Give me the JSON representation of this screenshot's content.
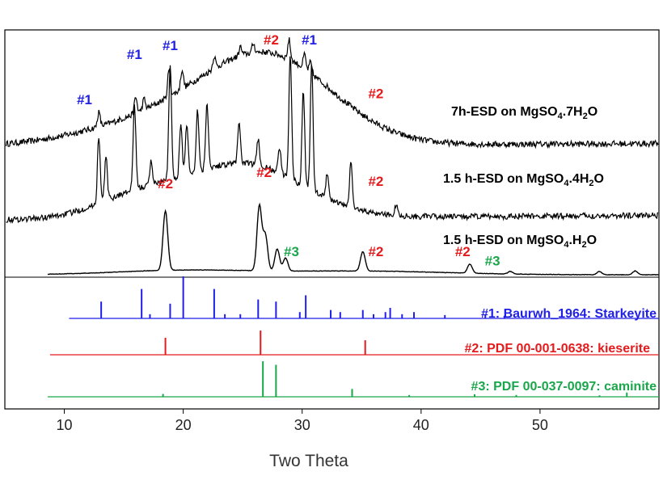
{
  "chart_data": {
    "type": "line",
    "xlabel": "Two Theta",
    "ylabel": "",
    "xlim": [
      5,
      60
    ],
    "xticks": [
      10,
      20,
      30,
      40,
      50
    ],
    "grid": false,
    "legend_placement": "none",
    "colors": {
      "hash1": "#1f1fe6",
      "hash2": "#e41a1c",
      "hash3": "#1aa64a",
      "measured": "#000000",
      "frame": "#000000"
    },
    "series": [
      {
        "label_main": "7h-ESD on MgSO",
        "sub1": "4",
        "mid": ".7H",
        "sub2": "2",
        "tail": "O",
        "baseline": 0.0,
        "hump": {
          "center": 27.5,
          "width": 7.5,
          "height": 0.62
        },
        "hump2": {
          "center": 20,
          "width": 10,
          "height": 0.25
        },
        "noise": 0.05,
        "peaks": [
          {
            "x": 12.9,
            "h": 0.16
          },
          {
            "x": 16.0,
            "h": 0.18
          },
          {
            "x": 16.7,
            "h": 0.12
          },
          {
            "x": 18.8,
            "h": 0.3
          },
          {
            "x": 19.9,
            "h": 0.22
          },
          {
            "x": 22.6,
            "h": 0.14
          },
          {
            "x": 24.8,
            "h": 0.1
          },
          {
            "x": 25.9,
            "h": 0.1
          },
          {
            "x": 28.9,
            "h": 0.22
          },
          {
            "x": 30.2,
            "h": 0.16
          },
          {
            "x": 30.7,
            "h": 0.12
          }
        ]
      },
      {
        "label_main": "1.5 h-ESD on MgSO",
        "sub1": "4",
        "mid": ".4H",
        "sub2": "2",
        "tail": "O",
        "baseline": 0.0,
        "hump": {
          "center": 25,
          "width": 7,
          "height": 0.42
        },
        "hump2": {
          "center": 16,
          "width": 5,
          "height": 0.15
        },
        "noise": 0.045,
        "peaks": [
          {
            "x": 12.9,
            "h": 0.52
          },
          {
            "x": 13.5,
            "h": 0.34
          },
          {
            "x": 15.9,
            "h": 0.66
          },
          {
            "x": 17.3,
            "h": 0.18
          },
          {
            "x": 18.9,
            "h": 0.9
          },
          {
            "x": 19.8,
            "h": 0.4
          },
          {
            "x": 20.3,
            "h": 0.4
          },
          {
            "x": 21.2,
            "h": 0.48
          },
          {
            "x": 22.0,
            "h": 0.52
          },
          {
            "x": 24.7,
            "h": 0.32
          },
          {
            "x": 26.3,
            "h": 0.2
          },
          {
            "x": 28.1,
            "h": 0.2
          },
          {
            "x": 29.0,
            "h": 0.98
          },
          {
            "x": 30.1,
            "h": 0.74
          },
          {
            "x": 30.8,
            "h": 1.0
          },
          {
            "x": 32.1,
            "h": 0.2
          },
          {
            "x": 34.1,
            "h": 0.36
          },
          {
            "x": 37.9,
            "h": 0.08
          }
        ]
      },
      {
        "label_main": "1.5 h-ESD on MgSO",
        "sub1": "4",
        "mid": ".H",
        "sub2": "2",
        "tail": "O",
        "baseline": 0.0,
        "hump": {
          "center": 20,
          "width": 8,
          "height": 0.06
        },
        "hump2": {
          "center": 35,
          "width": 10,
          "height": 0.05
        },
        "noise": 0.006,
        "peaks": [
          {
            "x": 18.5,
            "h": 0.92
          },
          {
            "x": 26.4,
            "h": 1.0
          },
          {
            "x": 26.9,
            "h": 0.55
          },
          {
            "x": 27.9,
            "h": 0.34
          },
          {
            "x": 28.6,
            "h": 0.2
          },
          {
            "x": 35.1,
            "h": 0.3
          },
          {
            "x": 44.1,
            "h": 0.14
          },
          {
            "x": 47.5,
            "h": 0.04
          },
          {
            "x": 55.0,
            "h": 0.05
          },
          {
            "x": 58.0,
            "h": 0.06
          }
        ]
      }
    ],
    "measured_annotations": [
      {
        "text": "#1",
        "x": 11.7,
        "trace": 0,
        "dy": -28,
        "color": "hash1"
      },
      {
        "text": "#1",
        "x": 15.9,
        "trace": 0,
        "dy": -48,
        "color": "hash1"
      },
      {
        "text": "#1",
        "x": 18.9,
        "trace": 0,
        "dy": -24,
        "color": "hash1"
      },
      {
        "text": "#2",
        "x": 27.4,
        "trace": 0,
        "dy": -26,
        "color": "hash2"
      },
      {
        "text": "#1",
        "x": 30.6,
        "trace": 0,
        "dy": -24,
        "color": "hash1"
      },
      {
        "text": "#2",
        "x": 36.2,
        "trace": 0,
        "dy": -26,
        "color": "hash2"
      },
      {
        "text": "#2",
        "x": 36.2,
        "trace": 1,
        "dy": -30,
        "color": "hash2"
      },
      {
        "text": "#2",
        "x": 26.8,
        "trace": 2,
        "dy": -34,
        "color": "hash2"
      },
      {
        "text": "#3",
        "x": 29.1,
        "trace": 2,
        "dy": -2,
        "color": "hash3"
      },
      {
        "text": "#2",
        "x": 18.5,
        "trace": 2,
        "dy": -28,
        "color": "hash2"
      },
      {
        "text": "#2",
        "x": 36.2,
        "trace": 2,
        "dy": -18,
        "color": "hash2"
      },
      {
        "text": "#2",
        "x": 43.5,
        "trace": 2,
        "dy": -10,
        "color": "hash2"
      },
      {
        "text": "#3",
        "x": 46.0,
        "trace": 2,
        "dy": -10,
        "color": "hash3"
      }
    ],
    "reference_patterns": [
      {
        "label": "#1: Baurwh_1964: Starkeyite",
        "color": "hash1",
        "x_start": 10.4,
        "peaks": [
          {
            "x": 13.1,
            "h": 0.4
          },
          {
            "x": 16.5,
            "h": 0.7
          },
          {
            "x": 17.2,
            "h": 0.1
          },
          {
            "x": 18.9,
            "h": 0.35
          },
          {
            "x": 20.0,
            "h": 1.0
          },
          {
            "x": 22.6,
            "h": 0.7
          },
          {
            "x": 23.5,
            "h": 0.1
          },
          {
            "x": 24.8,
            "h": 0.1
          },
          {
            "x": 26.3,
            "h": 0.45
          },
          {
            "x": 27.8,
            "h": 0.4
          },
          {
            "x": 29.8,
            "h": 0.15
          },
          {
            "x": 30.3,
            "h": 0.55
          },
          {
            "x": 32.4,
            "h": 0.2
          },
          {
            "x": 33.2,
            "h": 0.15
          },
          {
            "x": 35.1,
            "h": 0.2
          },
          {
            "x": 36.0,
            "h": 0.1
          },
          {
            "x": 37.0,
            "h": 0.15
          },
          {
            "x": 37.4,
            "h": 0.25
          },
          {
            "x": 38.4,
            "h": 0.1
          },
          {
            "x": 39.4,
            "h": 0.15
          },
          {
            "x": 42.0,
            "h": 0.08
          },
          {
            "x": 45.4,
            "h": 0.08
          },
          {
            "x": 47.0,
            "h": 0.06
          }
        ]
      },
      {
        "label": "#2: PDF 00-001-0638: kieserite",
        "color": "hash2",
        "x_start": 8.8,
        "peaks": [
          {
            "x": 18.5,
            "h": 0.7
          },
          {
            "x": 26.5,
            "h": 1.0
          },
          {
            "x": 35.3,
            "h": 0.6
          }
        ]
      },
      {
        "label": "#3: PDF 00-037-0097: caminite",
        "color": "hash3",
        "x_start": 8.6,
        "peaks": [
          {
            "x": 18.3,
            "h": 0.08
          },
          {
            "x": 26.7,
            "h": 1.0
          },
          {
            "x": 27.8,
            "h": 0.9
          },
          {
            "x": 34.2,
            "h": 0.22
          },
          {
            "x": 39.0,
            "h": 0.05
          },
          {
            "x": 44.5,
            "h": 0.07
          },
          {
            "x": 48.0,
            "h": 0.05
          },
          {
            "x": 55.0,
            "h": 0.04
          },
          {
            "x": 57.3,
            "h": 0.12
          }
        ]
      }
    ]
  }
}
